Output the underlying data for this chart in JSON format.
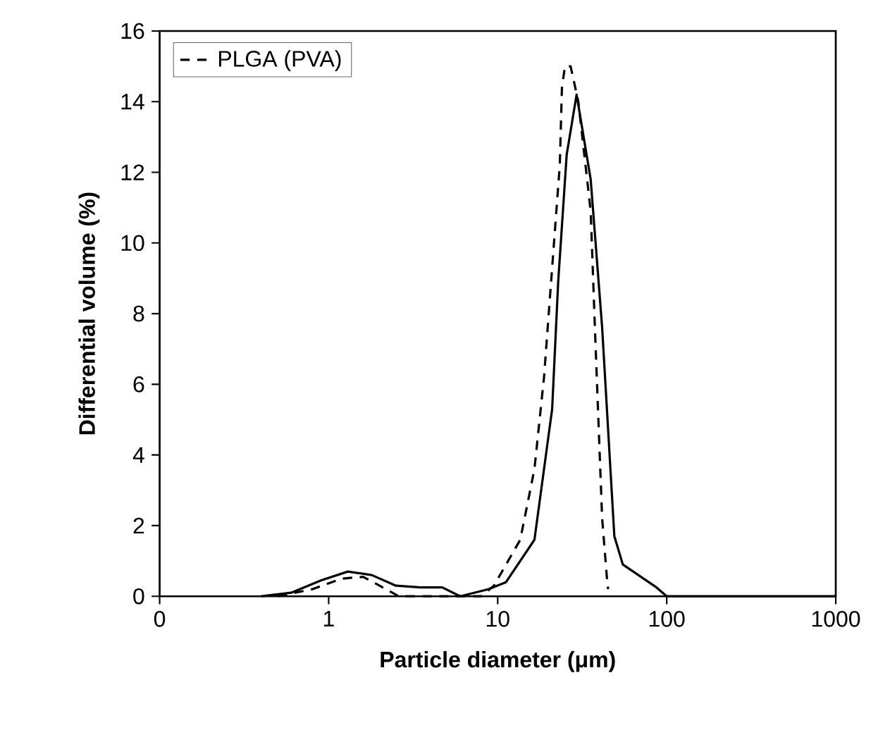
{
  "chart_data": {
    "type": "line",
    "xlabel": "Particle diameter (μm)",
    "ylabel": "Differential volume (%)",
    "log": "x",
    "xlim": [
      0.1,
      1000
    ],
    "ylim": [
      0,
      16
    ],
    "xticks": [
      {
        "value": 0.1,
        "label": "0"
      },
      1,
      10,
      100,
      1000
    ],
    "yticks": [
      0,
      2,
      4,
      6,
      8,
      10,
      12,
      14,
      16
    ],
    "legend": "top left",
    "grid": false,
    "marker": "none",
    "series": [
      {
        "color": "#000000",
        "line_style": "solid",
        "x": [
          0.4,
          0.6,
          0.9,
          1.3,
          1.8,
          2.5,
          3.5,
          4.7,
          6,
          8.8,
          11.2,
          16.5,
          21,
          22.8,
          25.6,
          29.3,
          35.5,
          41.5,
          49,
          55,
          87,
          100,
          1000
        ],
        "values": [
          0,
          0.1,
          0.45,
          0.7,
          0.6,
          0.3,
          0.25,
          0.25,
          0,
          0.2,
          0.4,
          1.6,
          5.3,
          8.9,
          12.5,
          14.2,
          11.8,
          7.6,
          1.7,
          0.9,
          0.25,
          0,
          0
        ]
      },
      {
        "name": "PLGA (PVA)",
        "color": "#000000",
        "line_style": "dashed",
        "x": [
          0.5,
          0.8,
          1.2,
          1.6,
          2,
          2.6,
          8,
          9.5,
          13.6,
          16.5,
          18.8,
          21,
          23.3,
          24,
          25,
          27,
          30,
          35.5,
          37.6,
          40,
          41.5,
          44.5,
          45
        ],
        "values": [
          0,
          0.2,
          0.5,
          0.55,
          0.3,
          0,
          0,
          0.3,
          1.6,
          3.6,
          6.2,
          9.3,
          12.2,
          14.4,
          15,
          15,
          14,
          10.9,
          7.6,
          4.2,
          2.2,
          0.4,
          0.2
        ]
      }
    ]
  }
}
